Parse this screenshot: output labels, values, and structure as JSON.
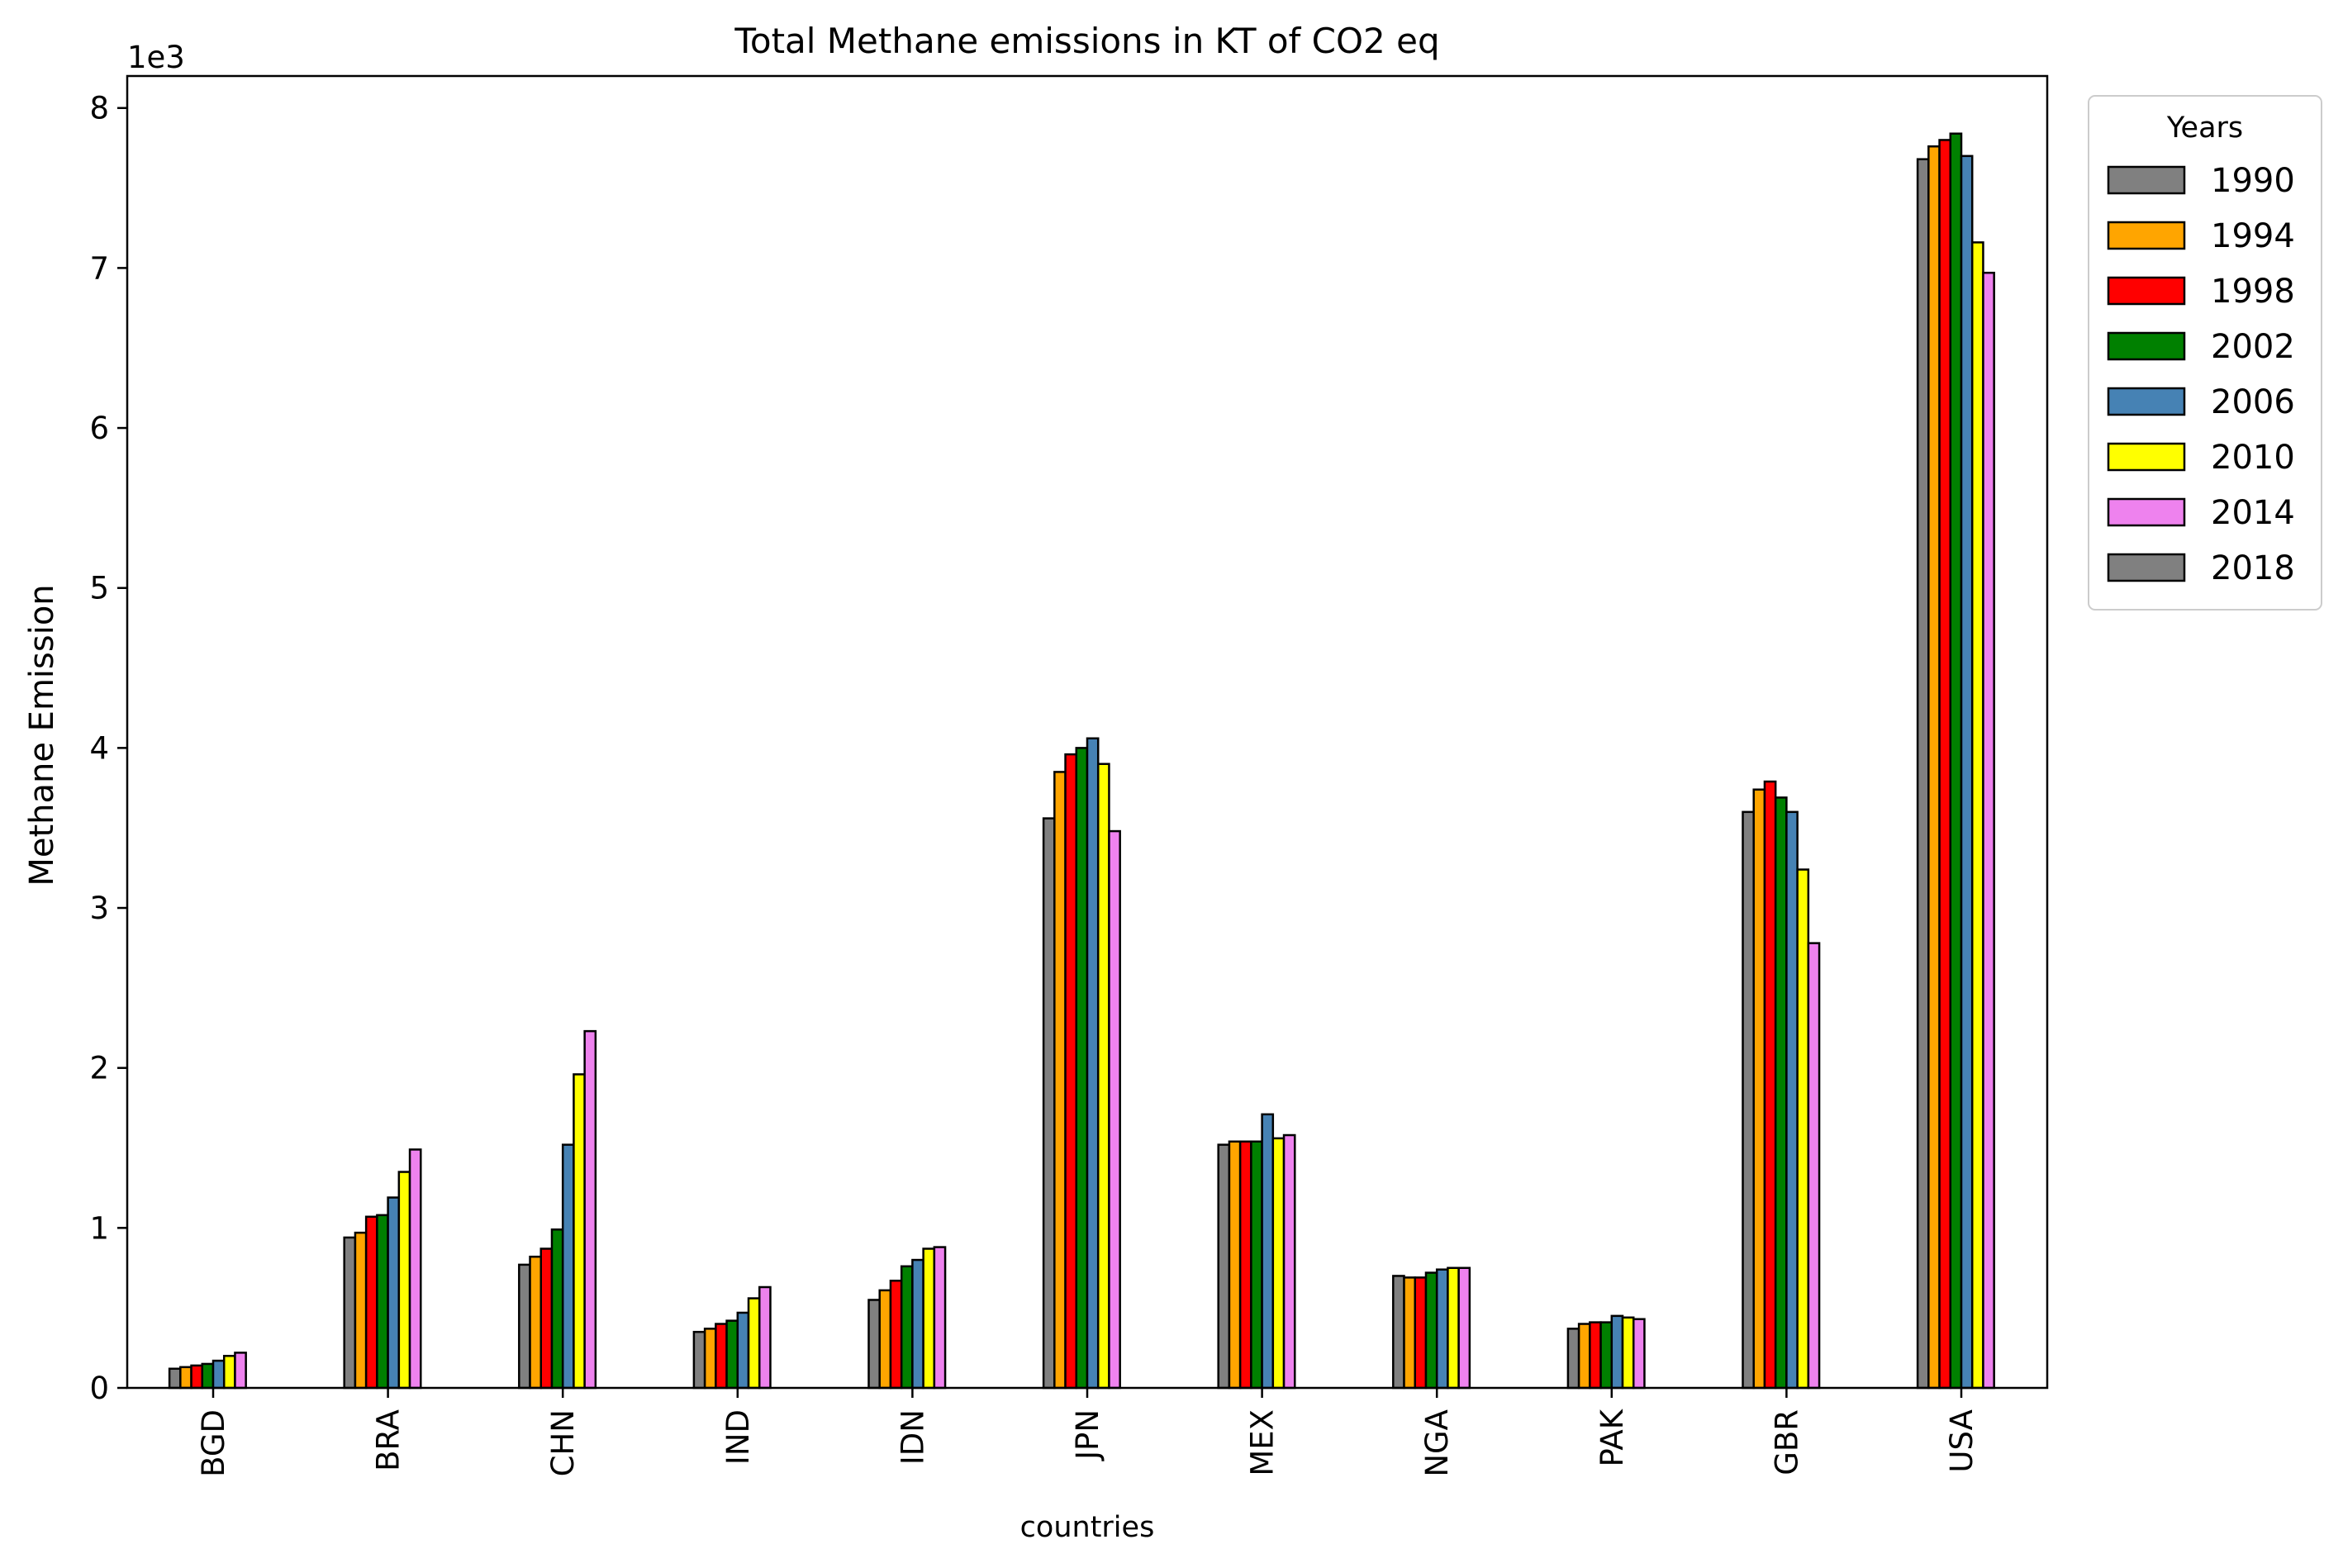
{
  "chart_data": {
    "type": "bar",
    "title": "Total Methane emissions in KT of CO2 eq",
    "xlabel": "countries",
    "ylabel": "Methane Emission",
    "y_multiplier": "1e3",
    "ylim": [
      0,
      8.2
    ],
    "yticks": [
      "0",
      "1",
      "2",
      "3",
      "4",
      "5",
      "6",
      "7",
      "8"
    ],
    "grid": false,
    "legend": {
      "title": "Years",
      "placement": "outside-top-right"
    },
    "categories": [
      "BGD",
      "BRA",
      "CHN",
      "IND",
      "IDN",
      "JPN",
      "MEX",
      "NGA",
      "PAK",
      "GBR",
      "USA"
    ],
    "series": [
      {
        "name": "1990",
        "color": "#808080",
        "values": [
          0.12,
          0.94,
          0.77,
          0.35,
          0.55,
          3.56,
          1.52,
          0.7,
          0.37,
          3.6,
          7.68
        ]
      },
      {
        "name": "1994",
        "color": "#FFA500",
        "values": [
          0.13,
          0.97,
          0.82,
          0.37,
          0.61,
          3.85,
          1.54,
          0.69,
          0.4,
          3.74,
          7.76
        ]
      },
      {
        "name": "1998",
        "color": "#FF0000",
        "values": [
          0.14,
          1.07,
          0.87,
          0.4,
          0.67,
          3.96,
          1.54,
          0.69,
          0.41,
          3.79,
          7.8
        ]
      },
      {
        "name": "2002",
        "color": "#008000",
        "values": [
          0.15,
          1.08,
          0.99,
          0.42,
          0.76,
          4.0,
          1.54,
          0.72,
          0.41,
          3.69,
          7.84
        ]
      },
      {
        "name": "2006",
        "color": "#4682B4",
        "values": [
          0.17,
          1.19,
          1.52,
          0.47,
          0.8,
          4.06,
          1.71,
          0.74,
          0.45,
          3.6,
          7.7
        ]
      },
      {
        "name": "2010",
        "color": "#FFFF00",
        "values": [
          0.2,
          1.35,
          1.96,
          0.56,
          0.87,
          3.9,
          1.56,
          0.75,
          0.44,
          3.24,
          7.16
        ]
      },
      {
        "name": "2014",
        "color": "#EE82EE",
        "values": [
          0.22,
          1.49,
          2.23,
          0.63,
          0.88,
          3.48,
          1.58,
          0.75,
          0.43,
          2.78,
          6.97
        ]
      },
      {
        "name": "2018",
        "color": "#808080",
        "values": [
          0,
          0,
          0,
          0,
          0,
          0,
          0,
          0,
          0,
          0,
          0
        ]
      }
    ]
  }
}
